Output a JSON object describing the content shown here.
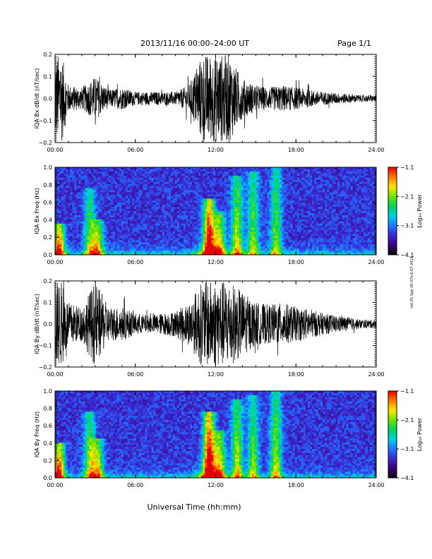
{
  "header": {
    "title": "2013/11/16  00:00–24:00 UT",
    "page": "Page 1/1"
  },
  "side_note": "mtl.P1 Spp 20 07h:6:07 2019",
  "xlabel": "Universal Time (hh:mm)",
  "colorbar": {
    "label": "Log₁₀ Power",
    "ticks": [
      "−1.1",
      "−2.1",
      "−3.1",
      "−4.1"
    ],
    "range": [
      -4.1,
      -1.1
    ]
  },
  "colors": {
    "trace": "#000000",
    "colormap": [
      "#000000",
      "#3c0078",
      "#3c28d2",
      "#1e78ff",
      "#00d2e6",
      "#00d25a",
      "#6ee600",
      "#ffe600",
      "#ff7800",
      "#e60000"
    ]
  },
  "chart_data": [
    {
      "type": "line",
      "title": "",
      "xlabel": "",
      "ylabel": "IQA Bx dB/dt (nT/sec)",
      "xlim": [
        0,
        24
      ],
      "ylim": [
        -0.2,
        0.2
      ],
      "xticks": [
        "00:00",
        "06:00",
        "12:00",
        "18:00",
        "24:00"
      ],
      "yticks": [
        "0.2",
        "0.1",
        "0.0",
        "−0.1",
        "−0.2"
      ],
      "x": [
        0,
        0.5,
        1,
        2,
        3,
        4,
        5,
        6,
        7,
        8,
        9,
        10,
        11,
        11.5,
        12,
        13,
        14,
        15,
        16,
        17,
        18,
        19,
        20,
        21,
        22,
        23,
        24
      ],
      "amplitude": [
        0.2,
        0.2,
        0.06,
        0.05,
        0.1,
        0.04,
        0.05,
        0.03,
        0.03,
        0.03,
        0.03,
        0.06,
        0.2,
        0.2,
        0.2,
        0.2,
        0.09,
        0.06,
        0.05,
        0.06,
        0.05,
        0.04,
        0.03,
        0.025,
        0.02,
        0.015,
        0.015
      ]
    },
    {
      "type": "heatmap",
      "title": "",
      "xlabel": "",
      "ylabel": "IQA Bx Freq (Hz)",
      "xlim": [
        0,
        24
      ],
      "ylim": [
        0,
        1.0
      ],
      "xticks": [
        "00:00",
        "06:00",
        "12:00",
        "18:00",
        "24:00"
      ],
      "yticks": [
        "1.0",
        "0.8",
        "0.6",
        "0.4",
        "0.2",
        "0.0"
      ],
      "zlabel": "Log₁₀ Power",
      "zlim": [
        -4.1,
        -1.1
      ],
      "bursts": [
        {
          "t": 0.3,
          "fmax": 0.35,
          "strength": 0.8
        },
        {
          "t": 2.6,
          "fmax": 0.75,
          "strength": 0.45
        },
        {
          "t": 3.2,
          "fmax": 0.4,
          "strength": 0.55
        },
        {
          "t": 11.5,
          "fmax": 0.65,
          "strength": 0.9
        },
        {
          "t": 12.3,
          "fmax": 0.5,
          "strength": 0.6
        },
        {
          "t": 13.6,
          "fmax": 0.9,
          "strength": 0.55
        },
        {
          "t": 14.8,
          "fmax": 0.95,
          "strength": 0.45
        },
        {
          "t": 16.5,
          "fmax": 1.0,
          "strength": 0.45
        }
      ]
    },
    {
      "type": "line",
      "title": "",
      "xlabel": "",
      "ylabel": "IQA By dB/dt (nT/sec)",
      "xlim": [
        0,
        24
      ],
      "ylim": [
        -0.2,
        0.2
      ],
      "xticks": [
        "00:00",
        "06:00",
        "12:00",
        "18:00",
        "24:00"
      ],
      "yticks": [
        "0.2",
        "0.1",
        "0.0",
        "−0.1",
        "−0.2"
      ],
      "x": [
        0,
        0.5,
        1,
        2,
        3,
        4,
        5,
        6,
        7,
        8,
        9,
        10,
        11,
        11.5,
        12,
        13,
        14,
        15,
        16,
        17,
        18,
        19,
        20,
        21,
        22,
        23,
        24
      ],
      "amplitude": [
        0.2,
        0.2,
        0.1,
        0.08,
        0.2,
        0.08,
        0.08,
        0.05,
        0.04,
        0.05,
        0.06,
        0.1,
        0.2,
        0.2,
        0.2,
        0.2,
        0.15,
        0.1,
        0.09,
        0.1,
        0.08,
        0.07,
        0.05,
        0.04,
        0.03,
        0.02,
        0.02
      ]
    },
    {
      "type": "heatmap",
      "title": "",
      "xlabel": "",
      "ylabel": "IQA By Freq (Hz)",
      "xlim": [
        0,
        24
      ],
      "ylim": [
        0,
        1.0
      ],
      "xticks": [
        "00:00",
        "06:00",
        "12:00",
        "18:00",
        "24:00"
      ],
      "yticks": [
        "1.0",
        "0.8",
        "0.6",
        "0.4",
        "0.2",
        "0.0"
      ],
      "zlabel": "Log₁₀ Power",
      "zlim": [
        -4.1,
        -1.1
      ],
      "bursts": [
        {
          "t": 0.3,
          "fmax": 0.4,
          "strength": 0.8
        },
        {
          "t": 2.6,
          "fmax": 0.75,
          "strength": 0.5
        },
        {
          "t": 3.2,
          "fmax": 0.45,
          "strength": 0.55
        },
        {
          "t": 11.5,
          "fmax": 0.75,
          "strength": 0.95
        },
        {
          "t": 12.3,
          "fmax": 0.55,
          "strength": 0.6
        },
        {
          "t": 13.6,
          "fmax": 0.9,
          "strength": 0.55
        },
        {
          "t": 14.8,
          "fmax": 0.95,
          "strength": 0.45
        },
        {
          "t": 16.5,
          "fmax": 1.0,
          "strength": 0.5
        }
      ]
    }
  ]
}
